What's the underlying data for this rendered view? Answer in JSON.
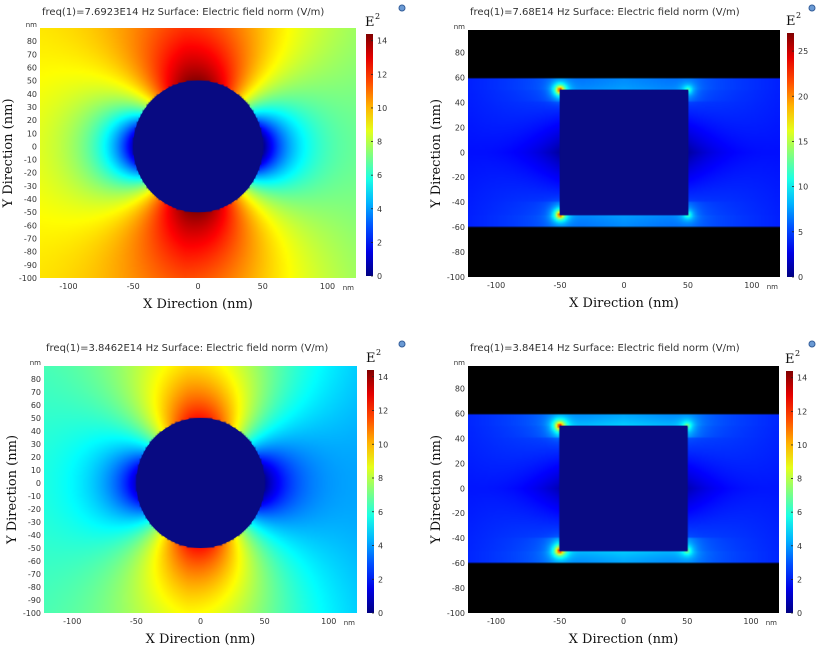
{
  "chart_data": [
    {
      "type": "heatmap",
      "title": "freq(1)=7.6923E14 Hz   Surface: Electric field norm (V/m)",
      "xlabel": "X Direction (nm)",
      "ylabel": "Y Direction (nm)",
      "unit": "nm",
      "shape": "circle",
      "particle": {
        "cx": 0,
        "cy": 0,
        "r": 50
      },
      "xlim": [
        -122,
        122
      ],
      "ylim": [
        -100,
        90
      ],
      "xticks": [
        -100,
        -50,
        0,
        50,
        100
      ],
      "yticks": [
        -100,
        -90,
        -80,
        -70,
        -60,
        -50,
        -40,
        -30,
        -20,
        -10,
        0,
        10,
        20,
        30,
        40,
        50,
        60,
        70,
        80
      ],
      "colorbar": {
        "label": "E",
        "superscript": "2",
        "min": 0,
        "max": 14.4,
        "ticks": [
          0,
          2,
          4,
          6,
          8,
          10,
          12,
          14
        ]
      },
      "field": {
        "base": 9.2,
        "lobe_peak": 14.4,
        "cold_spot": 0.8,
        "decay": 65
      }
    },
    {
      "type": "heatmap",
      "title": "freq(1)=7.68E14 Hz   Surface: Electric field norm (V/m)",
      "xlabel": "X Direction (nm)",
      "ylabel": "Y Direction (nm)",
      "unit": "nm",
      "shape": "square",
      "particle": {
        "x0": -50,
        "x1": 50,
        "y0": -50,
        "y1": 50
      },
      "xlim": [
        -122,
        122
      ],
      "ylim": [
        -100,
        98
      ],
      "xticks": [
        -100,
        -50,
        0,
        50,
        100
      ],
      "yticks": [
        -100,
        -80,
        -60,
        -40,
        -20,
        0,
        20,
        40,
        60,
        80
      ],
      "colorbar": {
        "label": "E",
        "superscript": "2",
        "min": 0,
        "max": 27,
        "ticks": [
          0,
          5,
          10,
          15,
          20,
          25
        ]
      },
      "field": {
        "base": 6.5,
        "corner_peak": 27,
        "cold_spot": 1.5
      }
    },
    {
      "type": "heatmap",
      "title": "freq(1)=3.8462E14 Hz   Surface: Electric field norm (V/m)",
      "xlabel": "X Direction (nm)",
      "ylabel": "Y Direction (nm)",
      "unit": "nm",
      "shape": "circle",
      "particle": {
        "cx": 0,
        "cy": 0,
        "r": 50
      },
      "xlim": [
        -122,
        122
      ],
      "ylim": [
        -100,
        90
      ],
      "xticks": [
        -100,
        -50,
        0,
        50,
        100
      ],
      "yticks": [
        -100,
        -90,
        -80,
        -70,
        -60,
        -50,
        -40,
        -30,
        -20,
        -10,
        0,
        10,
        20,
        30,
        40,
        50,
        60,
        70,
        80
      ],
      "colorbar": {
        "label": "E",
        "superscript": "2",
        "min": 0,
        "max": 14.4,
        "ticks": [
          0,
          2,
          4,
          6,
          8,
          10,
          12,
          14
        ]
      },
      "field": {
        "base": 6.2,
        "lobe_peak": 12.5,
        "cold_spot": 1.0,
        "decay": 65
      }
    },
    {
      "type": "heatmap",
      "title": "freq(1)=3.84E14 Hz   Surface: Electric field norm (V/m)",
      "xlabel": "X Direction (nm)",
      "ylabel": "Y Direction (nm)",
      "unit": "nm",
      "shape": "square",
      "particle": {
        "x0": -50,
        "x1": 50,
        "y0": -50,
        "y1": 50
      },
      "xlim": [
        -122,
        122
      ],
      "ylim": [
        -100,
        98
      ],
      "xticks": [
        -100,
        -50,
        0,
        50,
        100
      ],
      "yticks": [
        -100,
        -80,
        -60,
        -40,
        -20,
        0,
        20,
        40,
        60,
        80
      ],
      "colorbar": {
        "label": "E",
        "superscript": "2",
        "min": 0,
        "max": 14.4,
        "ticks": [
          0,
          2,
          4,
          6,
          8,
          10,
          12,
          14
        ]
      },
      "field": {
        "base": 3.6,
        "corner_peak": 14.4,
        "cold_spot": 1.0
      }
    }
  ],
  "icons": {
    "export": "export-icon"
  }
}
